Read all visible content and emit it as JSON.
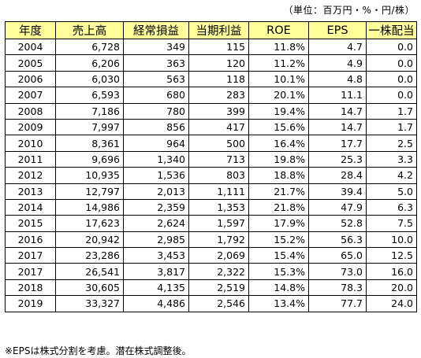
{
  "unit_note": "（単位：百万円・%・円/株）",
  "columns": [
    "年度",
    "売上高",
    "経常損益",
    "当期利益",
    "ROE",
    "EPS",
    "一株配当"
  ],
  "rows": [
    [
      "2004",
      "6,728",
      "349",
      "115",
      "11.8%",
      "4.7",
      "0.0"
    ],
    [
      "2005",
      "6,206",
      "363",
      "120",
      "11.2%",
      "4.9",
      "0.0"
    ],
    [
      "2006",
      "6,030",
      "563",
      "118",
      "10.1%",
      "4.8",
      "0.0"
    ],
    [
      "2007",
      "6,593",
      "680",
      "283",
      "20.1%",
      "11.1",
      "0.0"
    ],
    [
      "2008",
      "7,186",
      "780",
      "399",
      "19.4%",
      "14.7",
      "1.7"
    ],
    [
      "2009",
      "7,997",
      "856",
      "417",
      "15.6%",
      "14.7",
      "1.7"
    ],
    [
      "2010",
      "8,361",
      "964",
      "500",
      "16.4%",
      "17.7",
      "2.5"
    ],
    [
      "2011",
      "9,696",
      "1,340",
      "713",
      "19.8%",
      "25.3",
      "3.3"
    ],
    [
      "2012",
      "10,935",
      "1,536",
      "803",
      "18.8%",
      "28.4",
      "4.2"
    ],
    [
      "2013",
      "12,797",
      "2,013",
      "1,111",
      "21.7%",
      "39.4",
      "5.0"
    ],
    [
      "2014",
      "14,986",
      "2,359",
      "1,353",
      "21.8%",
      "47.9",
      "6.3"
    ],
    [
      "2015",
      "17,623",
      "2,624",
      "1,597",
      "17.9%",
      "52.8",
      "7.5"
    ],
    [
      "2016",
      "20,942",
      "2,985",
      "1,792",
      "15.2%",
      "56.3",
      "10.0"
    ],
    [
      "2017",
      "23,286",
      "3,453",
      "2,069",
      "15.4%",
      "65.0",
      "12.5"
    ],
    [
      "2017",
      "26,541",
      "3,817",
      "2,322",
      "15.3%",
      "73.0",
      "16.0"
    ],
    [
      "2018",
      "30,605",
      "4,135",
      "2,519",
      "14.8%",
      "78.3",
      "20.0"
    ],
    [
      "2019",
      "33,327",
      "4,486",
      "2,546",
      "13.4%",
      "77.7",
      "24.0"
    ]
  ],
  "footnote": "※EPSは株式分割を考慮。潜在株式調整後。",
  "colors": {
    "header_bg": "#ffff99",
    "border": "#000000"
  }
}
